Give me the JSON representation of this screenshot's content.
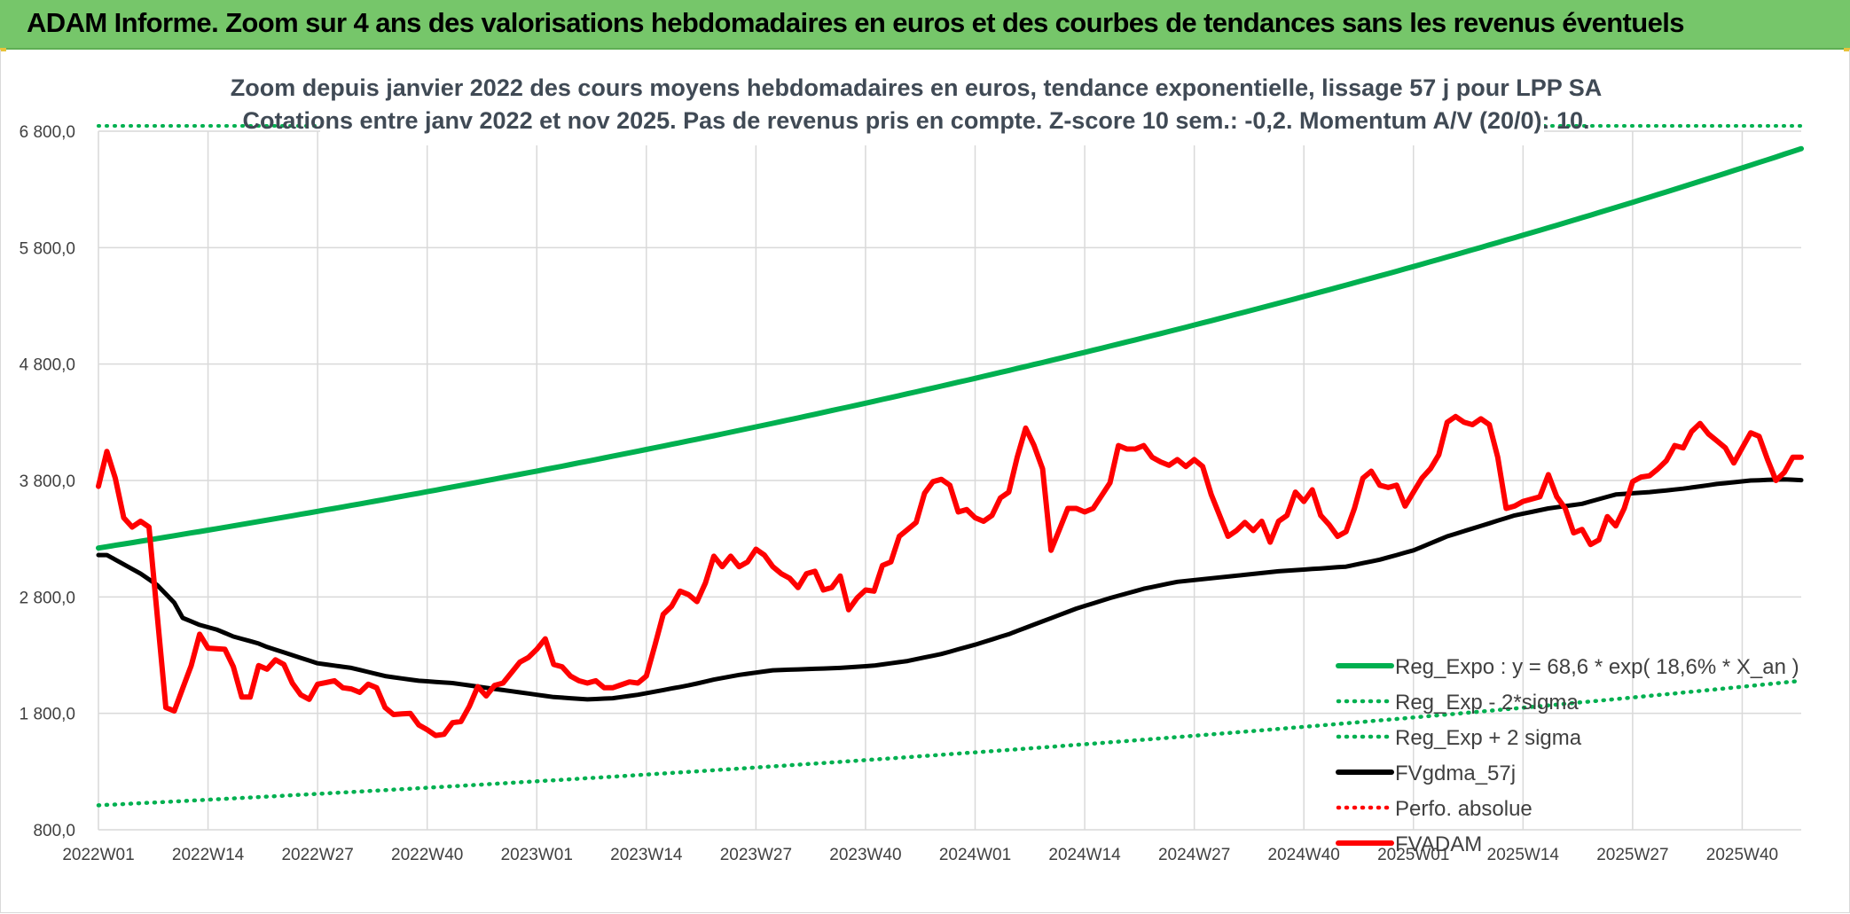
{
  "page": {
    "title": "ADAM Informe. Zoom sur 4 ans des valorisations hebdomadaires en euros et des courbes de tendances sans les revenus éventuels"
  },
  "colors": {
    "banner": "#76c66a",
    "green": "#00b050",
    "red": "#ff0000",
    "black": "#000000",
    "grid": "#d9d9d9"
  },
  "chart_data": {
    "type": "line",
    "title": "Zoom depuis janvier 2022 des cours moyens hebdomadaires en euros, tendance exponentielle, lissage 57 j pour LPP SA",
    "subtitle": "Cotations entre janv 2022 et nov 2025. Pas de revenus pris en compte. Z-score 10 sem.: -0,2. Momentum A/V (20/0): 10.",
    "x_unit": "week",
    "x_start": "2022W01",
    "n_points": 203,
    "x_ticks": [
      "2022W01",
      "2022W14",
      "2022W27",
      "2022W40",
      "2023W01",
      "2023W14",
      "2023W27",
      "2023W40",
      "2024W01",
      "2024W14",
      "2024W27",
      "2024W40",
      "2025W01",
      "2025W14",
      "2025W27",
      "2025W40"
    ],
    "y_ticks": [
      "800,0",
      "1 800,0",
      "2 800,0",
      "3 800,0",
      "4 800,0",
      "5 800,0",
      "6 800,0"
    ],
    "ylim": [
      800,
      6800
    ],
    "grid": true,
    "legend_position": "bottom-right",
    "series": [
      {
        "name": "Reg_Expo : y = 68,6 * exp( 18,6% *  X_an )",
        "style": "solid",
        "color": "#00b050",
        "exp_start": 3220,
        "exp_end": 6650
      },
      {
        "name": "Reg_Exp - 2*sigma",
        "style": "dotted",
        "color": "#00b050",
        "exp_start": 1010,
        "exp_end": 2080
      },
      {
        "name": "Reg_Exp + 2 sigma",
        "style": "dotted",
        "color": "#00b050",
        "constant": 6950
      },
      {
        "name": "FVgdma_57j",
        "style": "solid",
        "color": "#000000",
        "anchors": [
          [
            0,
            3160
          ],
          [
            1,
            3160
          ],
          [
            3,
            3080
          ],
          [
            5,
            3000
          ],
          [
            7,
            2900
          ],
          [
            9,
            2750
          ],
          [
            10,
            2620
          ],
          [
            12,
            2560
          ],
          [
            14,
            2520
          ],
          [
            16,
            2460
          ],
          [
            18,
            2420
          ],
          [
            19,
            2400
          ],
          [
            20,
            2370
          ],
          [
            23,
            2300
          ],
          [
            26,
            2230
          ],
          [
            30,
            2190
          ],
          [
            34,
            2120
          ],
          [
            38,
            2080
          ],
          [
            42,
            2060
          ],
          [
            46,
            2020
          ],
          [
            50,
            1980
          ],
          [
            54,
            1940
          ],
          [
            58,
            1920
          ],
          [
            61,
            1930
          ],
          [
            64,
            1960
          ],
          [
            67,
            2000
          ],
          [
            70,
            2040
          ],
          [
            73,
            2090
          ],
          [
            76,
            2130
          ],
          [
            80,
            2170
          ],
          [
            84,
            2180
          ],
          [
            88,
            2190
          ],
          [
            92,
            2210
          ],
          [
            96,
            2250
          ],
          [
            100,
            2310
          ],
          [
            104,
            2390
          ],
          [
            108,
            2480
          ],
          [
            112,
            2590
          ],
          [
            116,
            2700
          ],
          [
            120,
            2790
          ],
          [
            124,
            2870
          ],
          [
            128,
            2930
          ],
          [
            132,
            2960
          ],
          [
            136,
            2990
          ],
          [
            140,
            3020
          ],
          [
            144,
            3040
          ],
          [
            148,
            3060
          ],
          [
            152,
            3120
          ],
          [
            156,
            3200
          ],
          [
            160,
            3320
          ],
          [
            164,
            3410
          ],
          [
            168,
            3500
          ],
          [
            172,
            3560
          ],
          [
            176,
            3600
          ],
          [
            180,
            3680
          ],
          [
            184,
            3700
          ],
          [
            188,
            3730
          ],
          [
            192,
            3770
          ],
          [
            196,
            3800
          ],
          [
            200,
            3810
          ],
          [
            203,
            3800
          ]
        ]
      },
      {
        "name": "Perfo. absolue",
        "style": "dotted",
        "color": "#ff0000",
        "values": []
      },
      {
        "name": "FVADAM",
        "style": "solid",
        "color": "#ff0000",
        "anchors": [
          [
            0,
            3750
          ],
          [
            1,
            4050
          ],
          [
            2,
            3820
          ],
          [
            3,
            3480
          ],
          [
            4,
            3400
          ],
          [
            5,
            3450
          ],
          [
            6,
            3400
          ],
          [
            8,
            1850
          ],
          [
            9,
            1820
          ],
          [
            11,
            2210
          ],
          [
            12,
            2480
          ],
          [
            13,
            2360
          ],
          [
            15,
            2350
          ],
          [
            16,
            2200
          ],
          [
            17,
            1940
          ],
          [
            18,
            1940
          ],
          [
            19,
            2210
          ],
          [
            20,
            2180
          ],
          [
            21,
            2260
          ],
          [
            22,
            2220
          ],
          [
            23,
            2060
          ],
          [
            24,
            1960
          ],
          [
            25,
            1920
          ],
          [
            26,
            2050
          ],
          [
            28,
            2080
          ],
          [
            29,
            2020
          ],
          [
            30,
            2010
          ],
          [
            31,
            1980
          ],
          [
            32,
            2050
          ],
          [
            33,
            2020
          ],
          [
            34,
            1850
          ],
          [
            35,
            1790
          ],
          [
            37,
            1800
          ],
          [
            38,
            1700
          ],
          [
            39,
            1660
          ],
          [
            40,
            1610
          ],
          [
            41,
            1620
          ],
          [
            42,
            1720
          ],
          [
            43,
            1730
          ],
          [
            44,
            1860
          ],
          [
            45,
            2030
          ],
          [
            46,
            1950
          ],
          [
            47,
            2040
          ],
          [
            48,
            2060
          ],
          [
            49,
            2150
          ],
          [
            50,
            2240
          ],
          [
            51,
            2280
          ],
          [
            52,
            2350
          ],
          [
            53,
            2440
          ],
          [
            54,
            2220
          ],
          [
            55,
            2200
          ],
          [
            56,
            2120
          ],
          [
            57,
            2080
          ],
          [
            58,
            2060
          ],
          [
            59,
            2080
          ],
          [
            60,
            2020
          ],
          [
            61,
            2020
          ],
          [
            63,
            2070
          ],
          [
            64,
            2060
          ],
          [
            65,
            2120
          ],
          [
            66,
            2380
          ],
          [
            67,
            2650
          ],
          [
            68,
            2720
          ],
          [
            69,
            2850
          ],
          [
            70,
            2820
          ],
          [
            71,
            2760
          ],
          [
            72,
            2920
          ],
          [
            73,
            3150
          ],
          [
            74,
            3060
          ],
          [
            75,
            3150
          ],
          [
            76,
            3060
          ],
          [
            77,
            3100
          ],
          [
            78,
            3210
          ],
          [
            79,
            3160
          ],
          [
            80,
            3060
          ],
          [
            81,
            3000
          ],
          [
            82,
            2960
          ],
          [
            83,
            2880
          ],
          [
            84,
            3000
          ],
          [
            85,
            3020
          ],
          [
            86,
            2860
          ],
          [
            87,
            2880
          ],
          [
            88,
            2980
          ],
          [
            89,
            2690
          ],
          [
            90,
            2790
          ],
          [
            91,
            2860
          ],
          [
            92,
            2850
          ],
          [
            93,
            3070
          ],
          [
            94,
            3100
          ],
          [
            95,
            3320
          ],
          [
            96,
            3380
          ],
          [
            97,
            3440
          ],
          [
            98,
            3690
          ],
          [
            99,
            3790
          ],
          [
            100,
            3810
          ],
          [
            101,
            3760
          ],
          [
            102,
            3530
          ],
          [
            103,
            3550
          ],
          [
            104,
            3480
          ],
          [
            105,
            3450
          ],
          [
            106,
            3500
          ],
          [
            107,
            3650
          ],
          [
            108,
            3700
          ],
          [
            109,
            4000
          ],
          [
            110,
            4250
          ],
          [
            111,
            4100
          ],
          [
            112,
            3900
          ],
          [
            113,
            3200
          ],
          [
            114,
            3380
          ],
          [
            115,
            3560
          ],
          [
            116,
            3560
          ],
          [
            117,
            3530
          ],
          [
            118,
            3560
          ],
          [
            119,
            3670
          ],
          [
            120,
            3780
          ],
          [
            121,
            4100
          ],
          [
            122,
            4070
          ],
          [
            123,
            4070
          ],
          [
            124,
            4100
          ],
          [
            125,
            4000
          ],
          [
            126,
            3960
          ],
          [
            127,
            3930
          ],
          [
            128,
            3980
          ],
          [
            129,
            3920
          ],
          [
            130,
            3980
          ],
          [
            131,
            3920
          ],
          [
            132,
            3680
          ],
          [
            133,
            3500
          ],
          [
            134,
            3320
          ],
          [
            135,
            3370
          ],
          [
            136,
            3440
          ],
          [
            137,
            3370
          ],
          [
            138,
            3450
          ],
          [
            139,
            3270
          ],
          [
            140,
            3450
          ],
          [
            141,
            3500
          ],
          [
            142,
            3700
          ],
          [
            143,
            3620
          ],
          [
            144,
            3720
          ],
          [
            145,
            3500
          ],
          [
            146,
            3420
          ],
          [
            147,
            3320
          ],
          [
            148,
            3360
          ],
          [
            149,
            3560
          ],
          [
            150,
            3820
          ],
          [
            151,
            3880
          ],
          [
            152,
            3760
          ],
          [
            153,
            3740
          ],
          [
            154,
            3760
          ],
          [
            155,
            3580
          ],
          [
            156,
            3700
          ],
          [
            157,
            3820
          ],
          [
            158,
            3900
          ],
          [
            159,
            4020
          ],
          [
            160,
            4300
          ],
          [
            161,
            4350
          ],
          [
            162,
            4300
          ],
          [
            163,
            4280
          ],
          [
            164,
            4330
          ],
          [
            165,
            4280
          ],
          [
            166,
            4000
          ],
          [
            167,
            3560
          ],
          [
            168,
            3580
          ],
          [
            169,
            3620
          ],
          [
            170,
            3640
          ],
          [
            171,
            3660
          ],
          [
            172,
            3850
          ],
          [
            173,
            3660
          ],
          [
            174,
            3560
          ],
          [
            175,
            3350
          ],
          [
            176,
            3380
          ],
          [
            177,
            3250
          ],
          [
            178,
            3290
          ],
          [
            179,
            3490
          ],
          [
            180,
            3410
          ],
          [
            181,
            3560
          ],
          [
            182,
            3790
          ],
          [
            183,
            3830
          ],
          [
            184,
            3840
          ],
          [
            185,
            3900
          ],
          [
            186,
            3970
          ],
          [
            187,
            4100
          ],
          [
            188,
            4080
          ],
          [
            189,
            4220
          ],
          [
            190,
            4290
          ],
          [
            191,
            4200
          ],
          [
            192,
            4140
          ],
          [
            193,
            4080
          ],
          [
            194,
            3950
          ],
          [
            195,
            4080
          ],
          [
            196,
            4210
          ],
          [
            197,
            4180
          ],
          [
            198,
            3980
          ],
          [
            199,
            3800
          ],
          [
            200,
            3870
          ],
          [
            201,
            4000
          ]
        ]
      }
    ]
  }
}
